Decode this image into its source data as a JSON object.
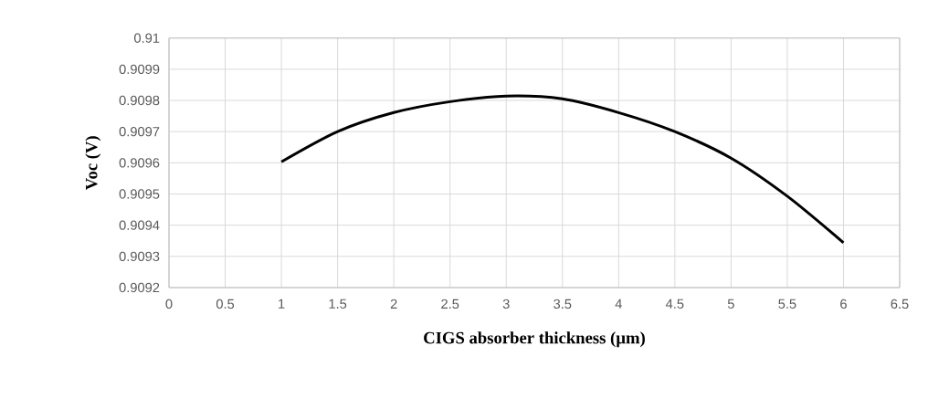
{
  "chart_data": {
    "type": "line",
    "xlabel": "CIGS absorber thickness (µm)",
    "ylabel": "Voc (V)",
    "x": [
      1,
      1.5,
      2,
      2.5,
      3,
      3.5,
      4,
      4.5,
      5,
      5.5,
      6
    ],
    "series": [
      {
        "color": "#000000",
        "values": [
          0.909603,
          0.9097,
          0.909761,
          0.909796,
          0.909814,
          0.909805,
          0.909761,
          0.9097,
          0.909615,
          0.909493,
          0.909344
        ]
      }
    ],
    "xlim": [
      0,
      6.5
    ],
    "ylim": [
      0.9092,
      0.91
    ],
    "xticks": [
      0,
      0.5,
      1,
      1.5,
      2,
      2.5,
      3,
      3.5,
      4,
      4.5,
      5,
      5.5,
      6,
      6.5
    ],
    "yticks": [
      0.9092,
      0.9093,
      0.9094,
      0.9095,
      0.9096,
      0.9097,
      0.9098,
      0.9099,
      0.91
    ],
    "grid": true,
    "legend": false,
    "marker": "none",
    "line_style": "solid"
  }
}
